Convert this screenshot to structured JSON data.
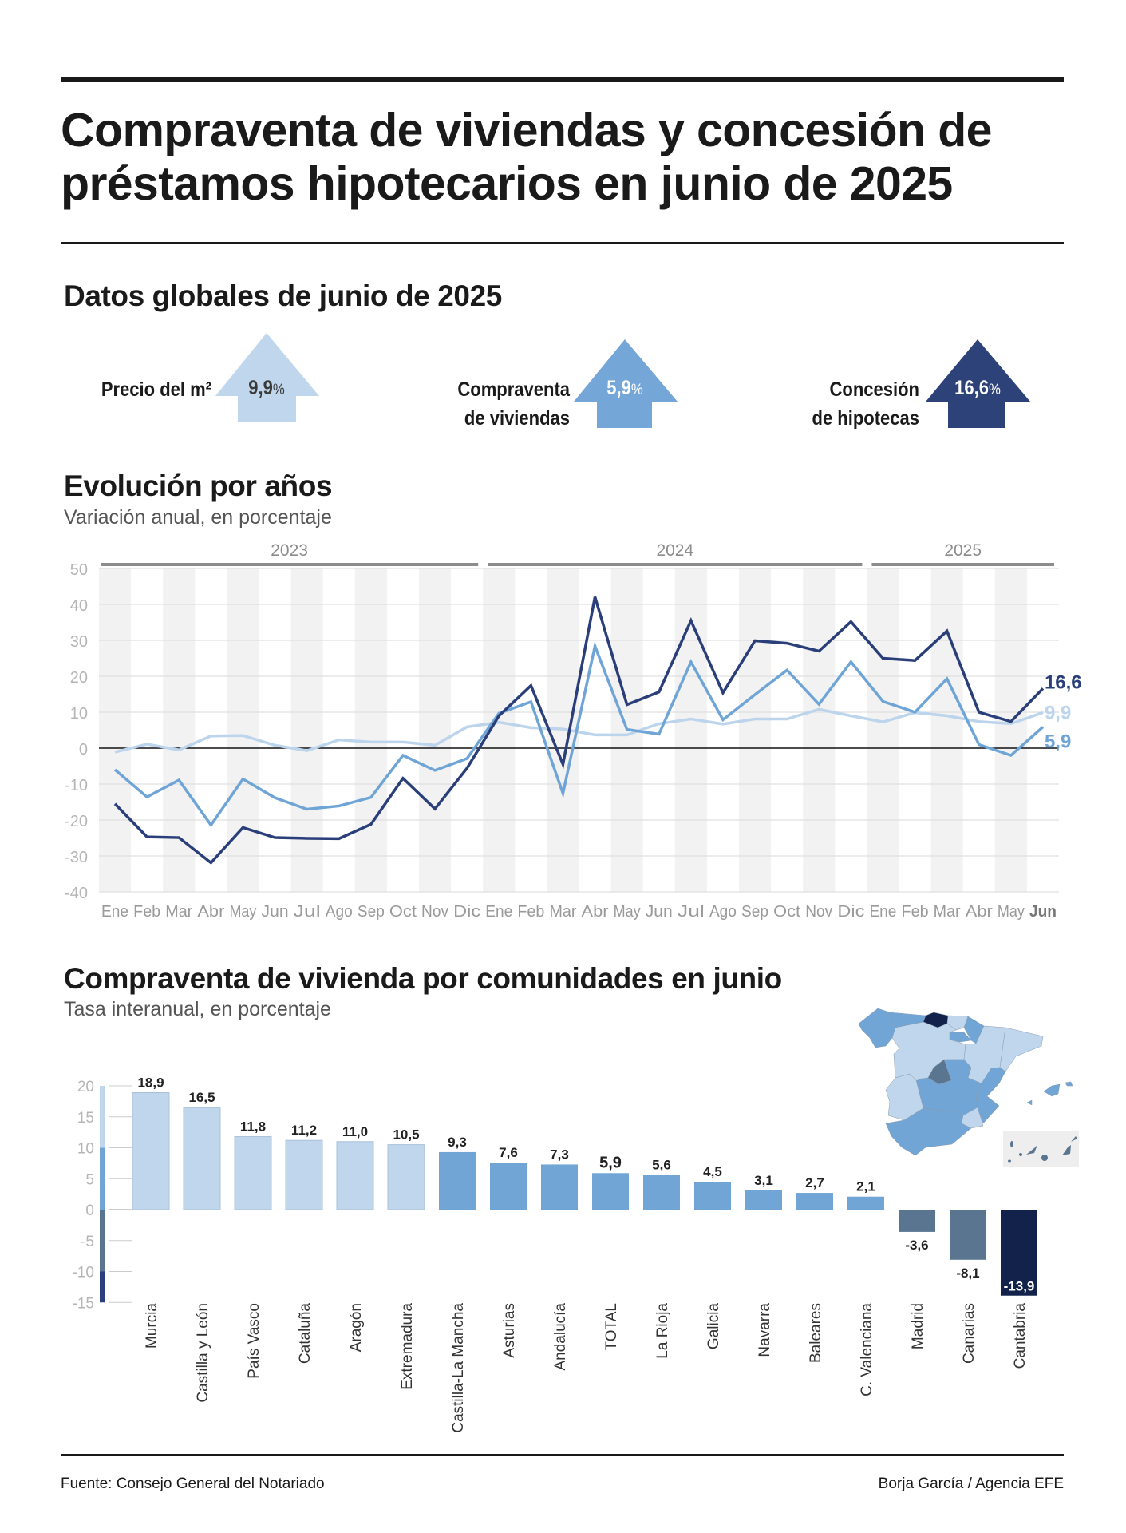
{
  "title": "Compraventa de viviendas y concesión de préstamos hipotecarios en junio de 2025",
  "kpis": {
    "heading": "Datos globales de junio de 2025",
    "items": [
      {
        "label_lines": [
          "Precio del m²"
        ],
        "value": "9,9",
        "unit": "%",
        "fraction_direction": "up",
        "color": "#bfd6ec",
        "text_color": "#3a3a3a"
      },
      {
        "label_lines": [
          "Compraventa",
          "de viviendas"
        ],
        "value": "5,9",
        "unit": "%",
        "fraction_direction": "up",
        "color": "#74a6d7",
        "text_color": "#ffffff"
      },
      {
        "label_lines": [
          "Concesión",
          "de hipotecas"
        ],
        "value": "16,6",
        "unit": "%",
        "fraction_direction": "up",
        "color": "#2c4279",
        "text_color": "#ffffff"
      }
    ]
  },
  "chart_data": [
    {
      "type": "line",
      "title": "Evolución por años",
      "subtitle": "Variación anual, en porcentaje",
      "years": [
        {
          "label": "2023",
          "months": 12
        },
        {
          "label": "2024",
          "months": 12
        },
        {
          "label": "2025",
          "months": 6
        }
      ],
      "x": [
        "Ene",
        "Feb",
        "Mar",
        "Abr",
        "May",
        "Jun",
        "Jul",
        "Ago",
        "Sep",
        "Oct",
        "Nov",
        "Dic",
        "Ene",
        "Feb",
        "Mar",
        "Abr",
        "May",
        "Jun",
        "Jul",
        "Ago",
        "Sep",
        "Oct",
        "Nov",
        "Dic",
        "Ene",
        "Feb",
        "Mar",
        "Abr",
        "May",
        "Jun"
      ],
      "ylim": [
        -40,
        50
      ],
      "yticks": [
        50,
        40,
        30,
        20,
        10,
        0,
        -10,
        -20,
        -30,
        -40
      ],
      "grid": true,
      "series": [
        {
          "key": "precio",
          "color": "#bcd4ec",
          "end_label": "9,9",
          "values": [
            -1.1,
            1.1,
            -0.5,
            3.4,
            3.5,
            0.8,
            -0.7,
            2.3,
            1.7,
            1.7,
            0.8,
            5.9,
            7.2,
            5.7,
            5.3,
            3.7,
            3.7,
            6.8,
            8.1,
            6.7,
            8.1,
            8.1,
            10.8,
            9.0,
            7.3,
            9.9,
            9.0,
            7.4,
            6.8,
            9.9
          ]
        },
        {
          "key": "compraventa",
          "color": "#6fa5d6",
          "end_label": "5,9",
          "values": [
            -6.0,
            -13.6,
            -8.9,
            -21.4,
            -8.6,
            -13.8,
            -17.0,
            -16.1,
            -13.7,
            -2.0,
            -6.2,
            -2.9,
            9.7,
            12.9,
            -12.6,
            28.4,
            5.2,
            3.9,
            24.0,
            7.9,
            14.9,
            21.7,
            12.2,
            24.0,
            13.0,
            10.0,
            19.3,
            1.0,
            -2.0,
            5.9
          ]
        },
        {
          "key": "hipotecas",
          "color": "#2a3f7a",
          "end_label": "16,6",
          "values": [
            -15.5,
            -24.7,
            -24.9,
            -31.9,
            -22.1,
            -24.9,
            -25.1,
            -25.2,
            -21.2,
            -8.4,
            -16.9,
            -5.6,
            9.0,
            17.4,
            -4.5,
            42.1,
            12.1,
            15.6,
            35.5,
            15.4,
            29.9,
            29.2,
            27.0,
            35.2,
            25.0,
            24.4,
            32.6,
            10.0,
            7.4,
            16.6
          ]
        }
      ]
    },
    {
      "type": "bar",
      "title": "Compraventa de vivienda por comunidades en junio",
      "subtitle": "Tasa interanual, en porcentaje",
      "ylim": [
        -15,
        20
      ],
      "yticks": [
        20,
        15,
        10,
        5,
        0,
        -5,
        -10,
        -15
      ],
      "color_scale": [
        {
          "from": 10,
          "to": 20,
          "color": "#c0d6ec"
        },
        {
          "from": 0,
          "to": 10,
          "color": "#70a5d6"
        },
        {
          "from": -10,
          "to": 0,
          "color": "#5a7590"
        },
        {
          "from": -15,
          "to": -10,
          "color": "#2c3f7f"
        }
      ],
      "categories": [
        "Murcia",
        "Castilla y León",
        "País Vasco",
        "Cataluña",
        "Aragón",
        "Extremadura",
        "Castilla-La Mancha",
        "Asturias",
        "Andalucía",
        "TOTAL",
        "La Rioja",
        "Galicia",
        "Navarra",
        "Baleares",
        "C. Valenciana",
        "Madrid",
        "Canarias",
        "Cantabria"
      ],
      "values": [
        18.9,
        16.5,
        11.8,
        11.2,
        11.0,
        10.5,
        9.3,
        7.6,
        7.3,
        5.9,
        5.6,
        4.5,
        3.1,
        2.7,
        2.1,
        -3.6,
        -8.1,
        -13.9
      ],
      "labels": [
        "18,9",
        "16,5",
        "11,8",
        "11,2",
        "11,0",
        "10,5",
        "9,3",
        "7,6",
        "7,3",
        "5,9",
        "5,6",
        "4,5",
        "3,1",
        "2,7",
        "2,1",
        "-3,6",
        "-8,1",
        "-13,9"
      ]
    }
  ],
  "map": {
    "highlight_color": "#12224a"
  },
  "footer": {
    "source": "Fuente: Consejo General del Notariado",
    "credit": "Borja García / Agencia EFE"
  }
}
